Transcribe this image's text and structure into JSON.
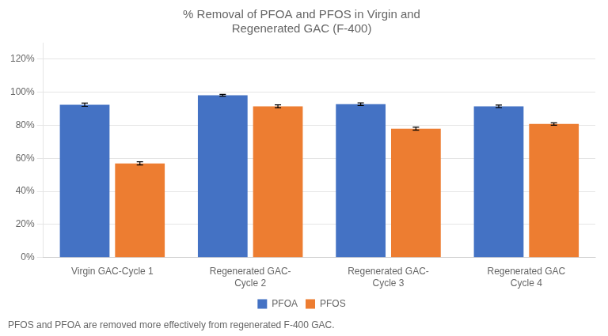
{
  "chart_data": {
    "type": "bar",
    "title": "% Removal of PFOA and PFOS in Virgin and\nRegenerated GAC (F-400)",
    "categories": [
      "Virgin GAC-Cycle 1",
      "Regenerated GAC-\nCycle 2",
      "Regenerated GAC-\nCycle 3",
      "Regenerated GAC\nCycle 4"
    ],
    "series": [
      {
        "name": "PFOA",
        "color": "#4472C4",
        "values": [
          0.925,
          0.982,
          0.928,
          0.915
        ],
        "errors": [
          0.01,
          0.005,
          0.008,
          0.008
        ]
      },
      {
        "name": "PFOS",
        "color": "#ED7D31",
        "values": [
          0.57,
          0.915,
          0.78,
          0.808
        ],
        "errors": [
          0.01,
          0.009,
          0.009,
          0.007
        ]
      }
    ],
    "ylim": [
      0,
      1.3
    ],
    "yticks": [
      {
        "value": 0,
        "label": "0%"
      },
      {
        "value": 0.2,
        "label": "20%"
      },
      {
        "value": 0.4,
        "label": "40%"
      },
      {
        "value": 0.6,
        "label": "60%"
      },
      {
        "value": 0.8,
        "label": "80%"
      },
      {
        "value": 1.0,
        "label": "100%"
      },
      {
        "value": 1.2,
        "label": "120%"
      }
    ],
    "grid": true,
    "legend": "bottom",
    "footnote": "PFOS and PFOA are removed more effectively from regenerated F-400 GAC."
  }
}
